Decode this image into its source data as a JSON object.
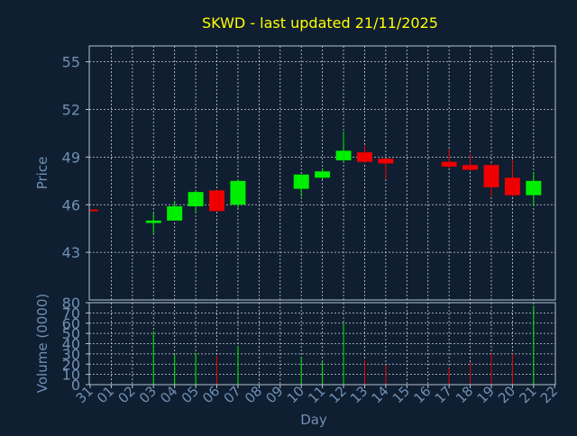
{
  "chart_data": {
    "type": "candlestick",
    "title": "SKWD - last updated 21/11/2025",
    "xlabel": "Day",
    "x_tick_labels": [
      "31",
      "01",
      "02",
      "03",
      "04",
      "05",
      "06",
      "07",
      "08",
      "09",
      "10",
      "11",
      "12",
      "13",
      "14",
      "15",
      "16",
      "17",
      "18",
      "19",
      "20",
      "21",
      "22"
    ],
    "price_panel": {
      "ylabel": "Price",
      "ylim": [
        40,
        56
      ],
      "yticks": [
        43,
        46,
        49,
        52,
        55
      ],
      "grid": true
    },
    "volume_panel": {
      "ylabel": "Volume (0000)",
      "ylim": [
        0,
        80
      ],
      "yticks": [
        0,
        10,
        20,
        30,
        40,
        50,
        60,
        70,
        80
      ],
      "grid": true
    },
    "candles": [
      {
        "day": "31",
        "open": 45.7,
        "close": 45.6,
        "high": 45.7,
        "low": 45.6,
        "volume": 0
      },
      {
        "day": "03",
        "open": 44.85,
        "close": 45.0,
        "high": 45.5,
        "low": 44.2,
        "volume": 52
      },
      {
        "day": "04",
        "open": 45.0,
        "close": 45.9,
        "high": 46.2,
        "low": 45.0,
        "volume": 29
      },
      {
        "day": "05",
        "open": 45.9,
        "close": 46.8,
        "high": 46.9,
        "low": 45.5,
        "volume": 31
      },
      {
        "day": "06",
        "open": 46.9,
        "close": 45.6,
        "high": 46.9,
        "low": 45.6,
        "volume": 28
      },
      {
        "day": "07",
        "open": 46.0,
        "close": 47.5,
        "high": 47.6,
        "low": 45.8,
        "volume": 38
      },
      {
        "day": "10",
        "open": 47.0,
        "close": 47.9,
        "high": 47.9,
        "low": 46.5,
        "volume": 27
      },
      {
        "day": "11",
        "open": 47.7,
        "close": 48.1,
        "high": 48.3,
        "low": 47.6,
        "volume": 23
      },
      {
        "day": "12",
        "open": 48.8,
        "close": 49.4,
        "high": 50.6,
        "low": 48.7,
        "volume": 60
      },
      {
        "day": "13",
        "open": 49.3,
        "close": 48.7,
        "high": 49.7,
        "low": 48.6,
        "volume": 24
      },
      {
        "day": "14",
        "open": 48.9,
        "close": 48.6,
        "high": 48.9,
        "low": 47.6,
        "volume": 19
      },
      {
        "day": "17",
        "open": 48.7,
        "close": 48.4,
        "high": 49.5,
        "low": 48.3,
        "volume": 16
      },
      {
        "day": "18",
        "open": 48.5,
        "close": 48.2,
        "high": 49.2,
        "low": 48.1,
        "volume": 22
      },
      {
        "day": "19",
        "open": 48.5,
        "close": 47.1,
        "high": 48.6,
        "low": 46.5,
        "volume": 30
      },
      {
        "day": "20",
        "open": 47.7,
        "close": 46.6,
        "high": 48.8,
        "low": 46.5,
        "volume": 30
      },
      {
        "day": "21",
        "open": 46.6,
        "close": 47.5,
        "high": 48.0,
        "low": 45.9,
        "volume": 77
      }
    ],
    "colors": {
      "background": "#0f1e30",
      "title": "#ffff00",
      "axis_text": "#6f90b5",
      "axis_line": "#b4c4d4",
      "grid": "#c8d2dc",
      "up": "#00ee00",
      "down": "#ee0000"
    }
  }
}
